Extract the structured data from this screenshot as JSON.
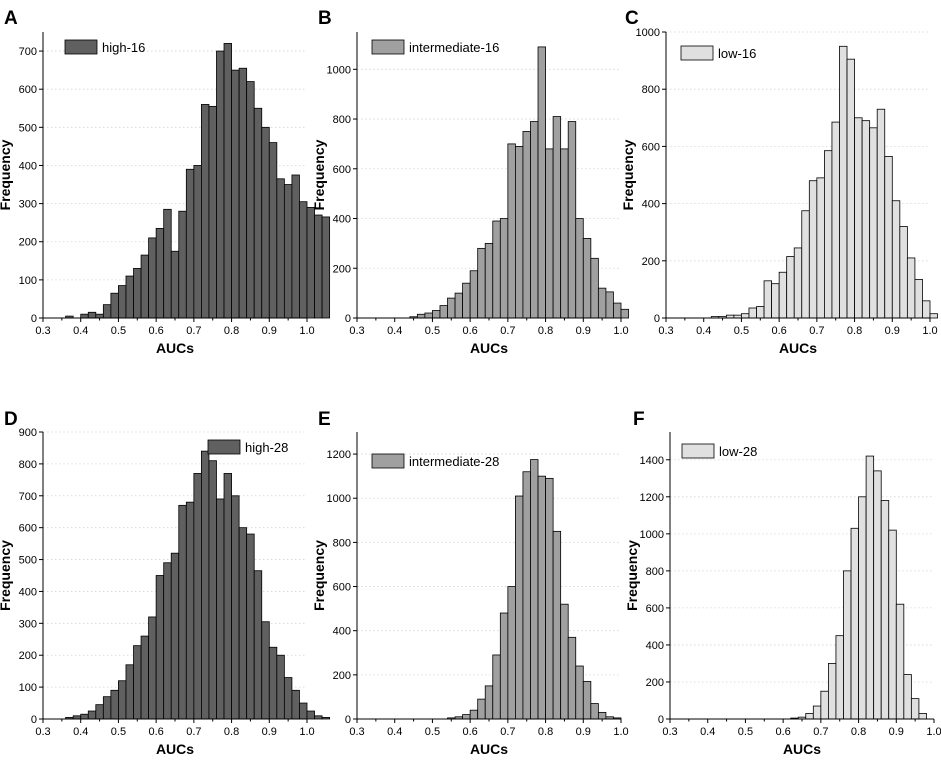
{
  "chart_data": [
    {
      "panel": "A",
      "type": "bar",
      "series_name": "high-16",
      "color": "#606060",
      "xlabel": "AUCs",
      "ylabel": "Frequency",
      "xlim": [
        0.3,
        1.0
      ],
      "ylim": [
        0,
        750
      ],
      "xticks": [
        "0.3",
        "0.4",
        "0.5",
        "0.6",
        "0.7",
        "0.8",
        "0.9",
        "1.0"
      ],
      "yticks": [
        0,
        100,
        200,
        300,
        400,
        500,
        600,
        700
      ],
      "bin_start": 0.3,
      "bin_width": 0.02,
      "values": [
        0,
        0,
        0,
        5,
        0,
        10,
        15,
        10,
        35,
        65,
        85,
        110,
        130,
        165,
        210,
        235,
        285,
        175,
        280,
        390,
        400,
        560,
        555,
        700,
        720,
        650,
        655,
        620,
        550,
        500,
        460,
        365,
        350,
        375,
        305,
        290,
        270,
        265
      ]
    },
    {
      "panel": "B",
      "type": "bar",
      "series_name": "intermediate-16",
      "color": "#a0a0a0",
      "xlabel": "AUCs",
      "ylabel": "Frequency",
      "xlim": [
        0.3,
        1.0
      ],
      "ylim": [
        0,
        1150
      ],
      "xticks": [
        "0.3",
        "0.4",
        "0.5",
        "0.6",
        "0.7",
        "0.8",
        "0.9",
        "1.0"
      ],
      "yticks": [
        0,
        200,
        400,
        600,
        800,
        1000
      ],
      "bin_start": 0.3,
      "bin_width": 0.02,
      "values": [
        0,
        0,
        0,
        0,
        0,
        0,
        0,
        5,
        15,
        20,
        30,
        50,
        80,
        100,
        140,
        190,
        280,
        300,
        390,
        400,
        700,
        690,
        750,
        790,
        1090,
        680,
        810,
        680,
        790,
        400,
        320,
        240,
        120,
        105,
        60,
        35
      ]
    },
    {
      "panel": "C",
      "type": "bar",
      "series_name": "low-16",
      "color": "#e0e0e0",
      "xlabel": "AUCs",
      "ylabel": "Frequency",
      "xlim": [
        0.3,
        1.0
      ],
      "ylim": [
        0,
        1000
      ],
      "xticks": [
        "0.3",
        "0.4",
        "0.5",
        "0.6",
        "0.7",
        "0.8",
        "0.9",
        "1.0"
      ],
      "yticks": [
        0,
        200,
        400,
        600,
        800,
        1000
      ],
      "bin_start": 0.3,
      "bin_width": 0.02,
      "values": [
        0,
        0,
        0,
        0,
        0,
        0,
        5,
        5,
        10,
        10,
        15,
        35,
        40,
        130,
        120,
        160,
        215,
        245,
        375,
        480,
        490,
        585,
        685,
        950,
        905,
        700,
        690,
        665,
        730,
        565,
        410,
        320,
        210,
        135,
        60,
        15
      ]
    },
    {
      "panel": "D",
      "type": "bar",
      "series_name": "high-28",
      "color": "#606060",
      "xlabel": "AUCs",
      "ylabel": "Frequency",
      "xlim": [
        0.3,
        1.0
      ],
      "ylim": [
        0,
        900
      ],
      "xticks": [
        "0.3",
        "0.4",
        "0.5",
        "0.6",
        "0.7",
        "0.8",
        "0.9",
        "1.0"
      ],
      "yticks": [
        0,
        100,
        200,
        300,
        400,
        500,
        600,
        700,
        800,
        900
      ],
      "bin_start": 0.3,
      "bin_width": 0.02,
      "values": [
        0,
        0,
        0,
        5,
        10,
        15,
        25,
        45,
        70,
        90,
        120,
        170,
        230,
        260,
        320,
        450,
        490,
        520,
        670,
        680,
        770,
        840,
        810,
        690,
        770,
        700,
        600,
        580,
        465,
        305,
        225,
        200,
        130,
        90,
        50,
        25,
        10,
        5
      ]
    },
    {
      "panel": "E",
      "type": "bar",
      "series_name": "intermediate-28",
      "color": "#a0a0a0",
      "xlabel": "AUCs",
      "ylabel": "Frequency",
      "xlim": [
        0.3,
        1.0
      ],
      "ylim": [
        0,
        1300
      ],
      "xticks": [
        "0.3",
        "0.4",
        "0.5",
        "0.6",
        "0.7",
        "0.8",
        "0.9",
        "1.0"
      ],
      "yticks": [
        0,
        200,
        400,
        600,
        800,
        1000,
        1200
      ],
      "bin_start": 0.3,
      "bin_width": 0.02,
      "values": [
        0,
        0,
        0,
        0,
        0,
        0,
        0,
        0,
        0,
        0,
        0,
        0,
        5,
        10,
        20,
        40,
        90,
        150,
        290,
        480,
        600,
        1010,
        1120,
        1175,
        1100,
        1090,
        850,
        520,
        370,
        240,
        170,
        70,
        30,
        10,
        5
      ]
    },
    {
      "panel": "F",
      "type": "bar",
      "series_name": "low-28",
      "color": "#e0e0e0",
      "xlabel": "AUCs",
      "ylabel": "Frequency",
      "xlim": [
        0.3,
        1.0
      ],
      "ylim": [
        0,
        1550
      ],
      "xticks": [
        "0.3",
        "0.4",
        "0.5",
        "0.6",
        "0.7",
        "0.8",
        "0.9",
        "1.0"
      ],
      "yticks": [
        0,
        200,
        400,
        600,
        800,
        1000,
        1200,
        1400
      ],
      "bin_start": 0.3,
      "bin_width": 0.02,
      "values": [
        0,
        0,
        0,
        0,
        0,
        0,
        0,
        0,
        0,
        0,
        0,
        0,
        0,
        0,
        0,
        0,
        5,
        10,
        30,
        70,
        150,
        300,
        450,
        800,
        1030,
        1200,
        1420,
        1340,
        1180,
        1020,
        620,
        240,
        110,
        30
      ]
    }
  ]
}
